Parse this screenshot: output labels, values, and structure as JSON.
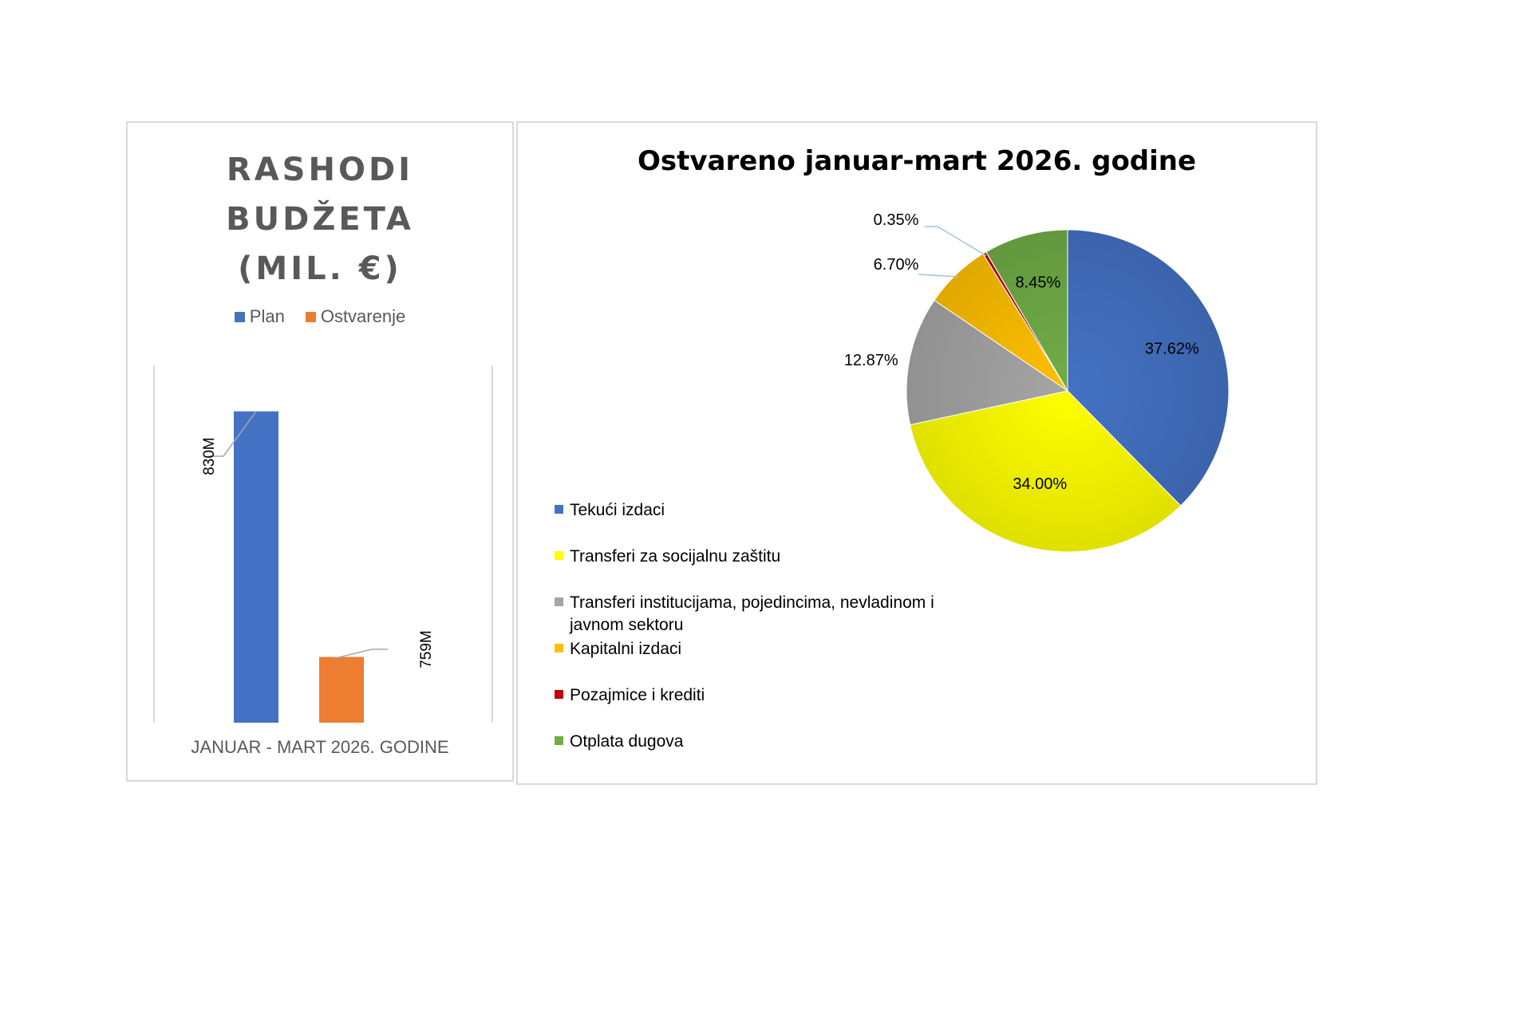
{
  "chart_data": [
    {
      "type": "bar",
      "title_lines": [
        "RASHODI",
        "BUDŽETA",
        "(MIL. €)"
      ],
      "categories": [
        "JANUAR - MART 2026. GODINE"
      ],
      "series": [
        {
          "name": "Plan",
          "values": [
            830
          ],
          "label": "830M",
          "color": "#4472C4"
        },
        {
          "name": "Ostvarenje",
          "values": [
            759
          ],
          "label": "759M",
          "color": "#ED7D31"
        }
      ],
      "ylim": [
        740,
        835
      ],
      "legend": "top",
      "grid": false
    },
    {
      "type": "pie",
      "title": "Ostvareno januar-mart 2026. godine",
      "slices": [
        {
          "label": "Tekući izdaci",
          "value": 37.62,
          "text": "37.62%",
          "color": "#4472C4"
        },
        {
          "label": "Transferi za socijalnu zaštitu",
          "value": 34.0,
          "text": "34.00%",
          "color": "#FFFF00"
        },
        {
          "label": "Transferi institucijama, pojedincima, nevladinom i javnom sektoru",
          "value": 12.87,
          "text": "12.87%",
          "color": "#A5A5A5"
        },
        {
          "label": "Kapitalni izdaci",
          "value": 6.7,
          "text": "6.70%",
          "color": "#FFC000"
        },
        {
          "label": "Pozajmice i krediti",
          "value": 0.35,
          "text": "0.35%",
          "color": "#C00000"
        },
        {
          "label": "Otplata dugova",
          "value": 8.45,
          "text": "8.45%",
          "color": "#70AD47"
        }
      ],
      "legend": "left"
    }
  ]
}
